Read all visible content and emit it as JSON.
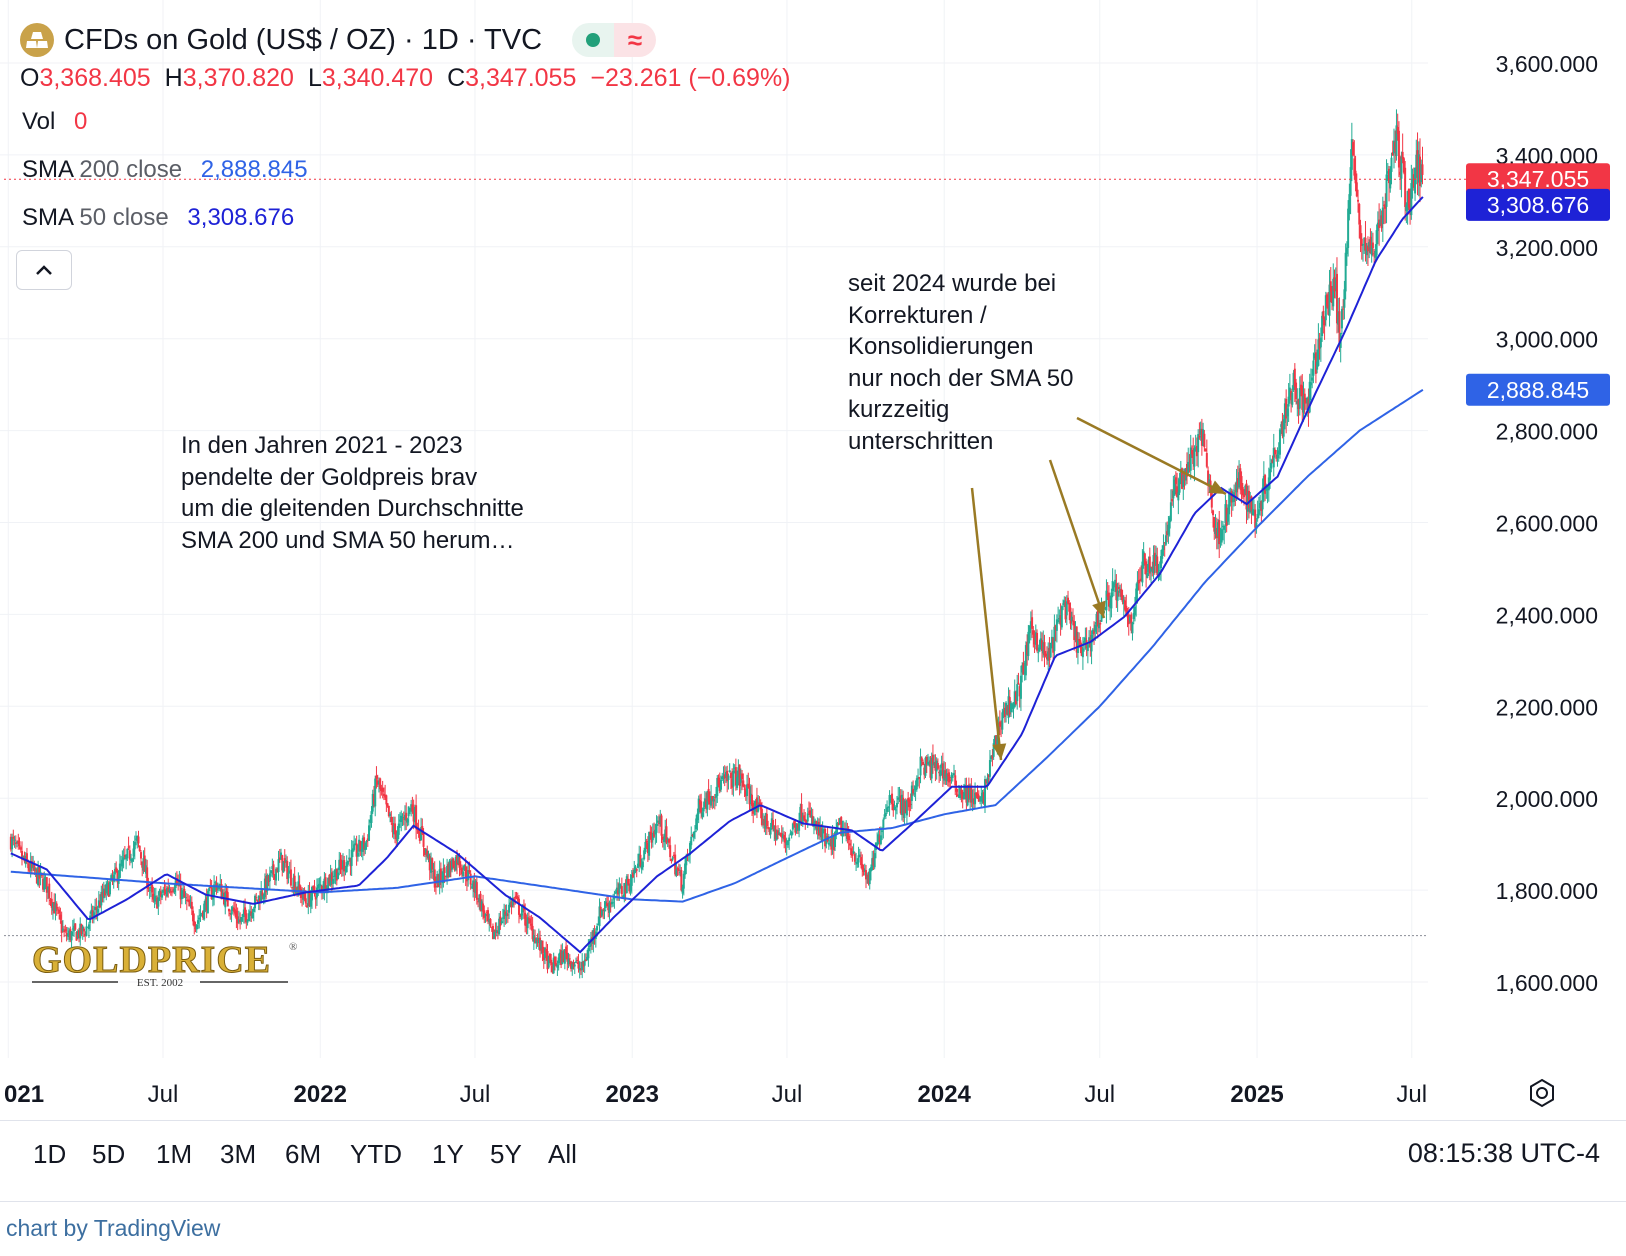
{
  "header": {
    "title": "CFDs on Gold (US$ / OZ) · 1D · TVC",
    "status_wave": "≈",
    "ohlc": {
      "o_label": "O",
      "o_value": "3,368.405",
      "h_label": "H",
      "h_value": "3,370.820",
      "l_label": "L",
      "l_value": "3,340.470",
      "c_label": "C",
      "c_value": "3,347.055",
      "change": "−23.261 (−0.69%)"
    },
    "vol_label": "Vol",
    "vol_value": "0",
    "sma200_label": "SMA",
    "sma200_param": "200 close",
    "sma200_value": "2,888.845",
    "sma50_label": "SMA",
    "sma50_param": "50 close",
    "sma50_value": "3,308.676"
  },
  "colors": {
    "up": "#22ab94",
    "down": "#f23645",
    "sma50": "#1e22d6",
    "sma200": "#2f63e6",
    "annotation_arrow": "#9a7a24",
    "grid": "#f0f2f6",
    "price_label": "#f23645",
    "sma50_label": "#1e22d6",
    "sma200_label": "#2f63e6"
  },
  "annotations": {
    "left": "In den Jahren 2021 - 2023\npendelte der Goldpreis brav\num die gleitenden Durchschnitte\nSMA 200 und SMA 50 herum…",
    "right": "seit 2024 wurde bei\nKorrekturen /\nKonsolidierungen\nnur noch der SMA 50\nkurzzeitig\nunterschritten"
  },
  "watermark": {
    "brand": "GOLDPRICE",
    "est": "EST. 2002",
    "reg": "®"
  },
  "timeframes": [
    "1D",
    "5D",
    "1M",
    "3M",
    "6M",
    "YTD",
    "1Y",
    "5Y",
    "All"
  ],
  "time": "08:15:38 UTC-4",
  "credit": "chart by TradingView",
  "chart_data": {
    "type": "line",
    "series_type": "candlestick (daily)",
    "ylim": [
      1500,
      3650
    ],
    "y_ticks": [
      1600,
      1800,
      2000,
      2200,
      2400,
      2600,
      2800,
      3000,
      3200,
      3400,
      3600
    ],
    "y_tick_labels": [
      "1,600.000",
      "1,800.000",
      "2,000.000",
      "2,200.000",
      "2,400.000",
      "2,600.000",
      "2,800.000",
      "3,000.000",
      "3,200.000",
      "3,400.000",
      "3,600.000"
    ],
    "x_range": [
      "2020-12-27",
      "2025-07-20"
    ],
    "x_ticks": [
      {
        "date": "2021-01-01",
        "label": "021",
        "bold": true
      },
      {
        "date": "2021-07-01",
        "label": "Jul",
        "bold": false
      },
      {
        "date": "2022-01-01",
        "label": "2022",
        "bold": true
      },
      {
        "date": "2022-07-01",
        "label": "Jul",
        "bold": false
      },
      {
        "date": "2023-01-01",
        "label": "2023",
        "bold": true
      },
      {
        "date": "2023-07-01",
        "label": "Jul",
        "bold": false
      },
      {
        "date": "2024-01-01",
        "label": "2024",
        "bold": true
      },
      {
        "date": "2024-07-01",
        "label": "Jul",
        "bold": false
      },
      {
        "date": "2025-01-01",
        "label": "2025",
        "bold": true
      },
      {
        "date": "2025-07-01",
        "label": "Jul",
        "bold": false
      }
    ],
    "close_path": [
      [
        "2021-01-04",
        1910
      ],
      [
        "2021-01-20",
        1860
      ],
      [
        "2021-02-15",
        1810
      ],
      [
        "2021-03-08",
        1700
      ],
      [
        "2021-03-31",
        1710
      ],
      [
        "2021-04-20",
        1780
      ],
      [
        "2021-05-10",
        1840
      ],
      [
        "2021-06-01",
        1905
      ],
      [
        "2021-06-20",
        1770
      ],
      [
        "2021-07-15",
        1820
      ],
      [
        "2021-08-09",
        1730
      ],
      [
        "2021-09-01",
        1815
      ],
      [
        "2021-09-29",
        1730
      ],
      [
        "2021-10-20",
        1780
      ],
      [
        "2021-11-16",
        1865
      ],
      [
        "2021-12-15",
        1775
      ],
      [
        "2022-01-25",
        1850
      ],
      [
        "2022-02-24",
        1905
      ],
      [
        "2022-03-08",
        2040
      ],
      [
        "2022-03-29",
        1920
      ],
      [
        "2022-04-18",
        1985
      ],
      [
        "2022-05-16",
        1815
      ],
      [
        "2022-06-10",
        1870
      ],
      [
        "2022-07-01",
        1805
      ],
      [
        "2022-07-21",
        1700
      ],
      [
        "2022-08-15",
        1780
      ],
      [
        "2022-09-05",
        1715
      ],
      [
        "2022-09-28",
        1630
      ],
      [
        "2022-10-14",
        1660
      ],
      [
        "2022-11-03",
        1625
      ],
      [
        "2022-11-25",
        1755
      ],
      [
        "2022-12-28",
        1815
      ],
      [
        "2023-02-01",
        1950
      ],
      [
        "2023-02-28",
        1815
      ],
      [
        "2023-03-20",
        1980
      ],
      [
        "2023-04-13",
        2030
      ],
      [
        "2023-05-04",
        2050
      ],
      [
        "2023-05-31",
        1960
      ],
      [
        "2023-06-29",
        1905
      ],
      [
        "2023-07-20",
        1975
      ],
      [
        "2023-08-21",
        1890
      ],
      [
        "2023-09-01",
        1940
      ],
      [
        "2023-10-05",
        1820
      ],
      [
        "2023-10-27",
        2000
      ],
      [
        "2023-11-20",
        1980
      ],
      [
        "2023-12-04",
        2070
      ],
      [
        "2023-12-28",
        2065
      ],
      [
        "2024-01-18",
        2020
      ],
      [
        "2024-02-14",
        1990
      ],
      [
        "2024-03-08",
        2180
      ],
      [
        "2024-03-28",
        2230
      ],
      [
        "2024-04-12",
        2370
      ],
      [
        "2024-05-01",
        2300
      ],
      [
        "2024-05-20",
        2425
      ],
      [
        "2024-06-10",
        2310
      ],
      [
        "2024-07-17",
        2460
      ],
      [
        "2024-08-07",
        2385
      ],
      [
        "2024-08-20",
        2510
      ],
      [
        "2024-09-10",
        2515
      ],
      [
        "2024-09-26",
        2665
      ],
      [
        "2024-10-30",
        2790
      ],
      [
        "2024-11-14",
        2565
      ],
      [
        "2024-12-12",
        2690
      ],
      [
        "2024-12-30",
        2610
      ],
      [
        "2025-01-24",
        2770
      ],
      [
        "2025-02-11",
        2905
      ],
      [
        "2025-02-28",
        2845
      ],
      [
        "2025-03-20",
        3045
      ],
      [
        "2025-04-02",
        3135
      ],
      [
        "2025-04-08",
        2970
      ],
      [
        "2025-04-22",
        3420
      ],
      [
        "2025-05-01",
        3230
      ],
      [
        "2025-05-15",
        3180
      ],
      [
        "2025-05-30",
        3300
      ],
      [
        "2025-06-13",
        3440
      ],
      [
        "2025-06-27",
        3280
      ],
      [
        "2025-07-03",
        3360
      ],
      [
        "2025-07-11",
        3368
      ],
      [
        "2025-07-14",
        3347.055
      ]
    ],
    "sma50_path": [
      [
        "2021-01-04",
        1880
      ],
      [
        "2021-02-15",
        1845
      ],
      [
        "2021-04-05",
        1735
      ],
      [
        "2021-05-20",
        1780
      ],
      [
        "2021-07-05",
        1835
      ],
      [
        "2021-08-20",
        1790
      ],
      [
        "2021-10-15",
        1770
      ],
      [
        "2021-12-15",
        1795
      ],
      [
        "2022-02-15",
        1810
      ],
      [
        "2022-03-20",
        1870
      ],
      [
        "2022-04-20",
        1940
      ],
      [
        "2022-06-10",
        1880
      ],
      [
        "2022-08-05",
        1790
      ],
      [
        "2022-09-15",
        1740
      ],
      [
        "2022-11-01",
        1665
      ],
      [
        "2022-12-10",
        1740
      ],
      [
        "2023-01-30",
        1830
      ],
      [
        "2023-03-10",
        1880
      ],
      [
        "2023-04-25",
        1950
      ],
      [
        "2023-05-31",
        1985
      ],
      [
        "2023-07-20",
        1945
      ],
      [
        "2023-09-15",
        1930
      ],
      [
        "2023-10-20",
        1885
      ],
      [
        "2023-11-25",
        1945
      ],
      [
        "2024-01-10",
        2025
      ],
      [
        "2024-02-20",
        2025
      ],
      [
        "2024-04-01",
        2140
      ],
      [
        "2024-05-10",
        2310
      ],
      [
        "2024-06-20",
        2340
      ],
      [
        "2024-07-30",
        2395
      ],
      [
        "2024-09-10",
        2490
      ],
      [
        "2024-10-20",
        2620
      ],
      [
        "2024-11-20",
        2675
      ],
      [
        "2024-12-20",
        2640
      ],
      [
        "2025-01-25",
        2700
      ],
      [
        "2025-03-10",
        2880
      ],
      [
        "2025-04-15",
        3020
      ],
      [
        "2025-05-20",
        3170
      ],
      [
        "2025-06-20",
        3260
      ],
      [
        "2025-07-14",
        3308.676
      ]
    ],
    "sma200_path": [
      [
        "2021-01-04",
        1840
      ],
      [
        "2021-07-01",
        1815
      ],
      [
        "2021-12-31",
        1795
      ],
      [
        "2022-04-01",
        1805
      ],
      [
        "2022-07-01",
        1830
      ],
      [
        "2022-10-01",
        1805
      ],
      [
        "2022-12-31",
        1780
      ],
      [
        "2023-03-01",
        1775
      ],
      [
        "2023-05-01",
        1815
      ],
      [
        "2023-07-01",
        1870
      ],
      [
        "2023-09-01",
        1925
      ],
      [
        "2023-11-01",
        1935
      ],
      [
        "2024-01-01",
        1965
      ],
      [
        "2024-03-01",
        1985
      ],
      [
        "2024-05-01",
        2090
      ],
      [
        "2024-07-01",
        2200
      ],
      [
        "2024-09-01",
        2330
      ],
      [
        "2024-11-01",
        2470
      ],
      [
        "2025-01-01",
        2590
      ],
      [
        "2025-03-01",
        2700
      ],
      [
        "2025-05-01",
        2800
      ],
      [
        "2025-07-14",
        2888.845
      ]
    ],
    "last_price": 3347.055,
    "reference_price": 1701
  }
}
